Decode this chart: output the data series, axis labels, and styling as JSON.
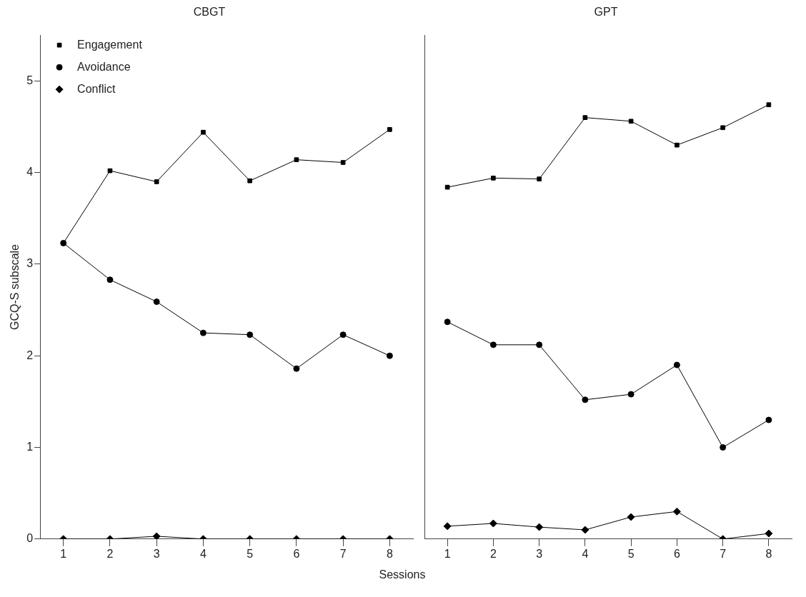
{
  "chart_data": [
    {
      "type": "line",
      "title": "CBGT",
      "xlabel": "Sessions",
      "ylabel": "GCQ-S subscale",
      "categories": [
        "1",
        "2",
        "3",
        "4",
        "5",
        "6",
        "7",
        "8"
      ],
      "ylim": [
        0,
        5.5
      ],
      "yticks": [
        0,
        1,
        2,
        3,
        4,
        5
      ],
      "grid": false,
      "legend": "top left",
      "series": [
        {
          "name": "Engagement",
          "color": "#000000",
          "marker": "square",
          "values": [
            3.23,
            4.02,
            3.9,
            4.44,
            3.91,
            4.14,
            4.11,
            4.47
          ]
        },
        {
          "name": "Avoidance",
          "color": "#000000",
          "marker": "circle",
          "values": [
            3.23,
            2.83,
            2.59,
            2.25,
            2.23,
            1.86,
            2.23,
            2.0
          ]
        },
        {
          "name": "Conflict",
          "color": "#000000",
          "marker": "diamond",
          "values": [
            0,
            0,
            0.03,
            0,
            0,
            0,
            0,
            0
          ]
        }
      ]
    },
    {
      "type": "line",
      "title": "GPT",
      "categories": [
        "1",
        "2",
        "3",
        "4",
        "5",
        "6",
        "7",
        "8"
      ],
      "ylim": [
        0,
        5.5
      ],
      "yticks": [
        0,
        1,
        2,
        3,
        4,
        5
      ],
      "grid": false,
      "legend": false,
      "tick_labels": "x",
      "series": [
        {
          "color": "#000000",
          "marker": "square",
          "values": [
            3.84,
            3.94,
            3.93,
            4.6,
            4.56,
            4.3,
            4.49,
            4.74
          ]
        },
        {
          "color": "#000000",
          "marker": "circle",
          "values": [
            2.37,
            2.12,
            2.12,
            1.52,
            1.58,
            1.9,
            1.0,
            1.3
          ]
        },
        {
          "color": "#000000",
          "marker": "diamond",
          "values": [
            0.14,
            0.17,
            0.13,
            0.1,
            0.24,
            0.3,
            0.0,
            0.06
          ]
        }
      ]
    }
  ]
}
